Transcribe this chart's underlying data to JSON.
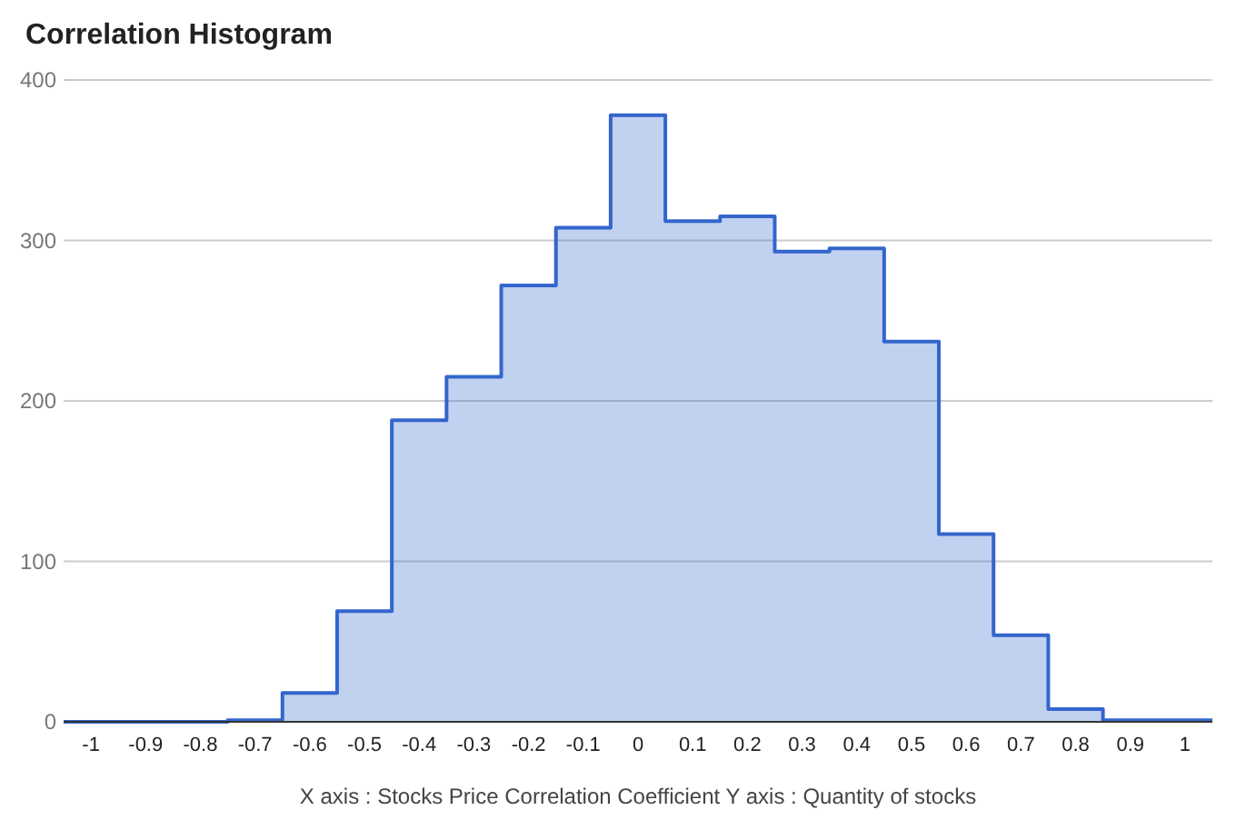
{
  "chart_data": {
    "type": "histogram",
    "title": "Correlation Histogram",
    "xlabel": "X axis : Stocks Price Correlation Coefficient  Y axis : Quantity of stocks",
    "bins": [
      -1.05,
      -0.95,
      -0.85,
      -0.75,
      -0.65,
      -0.55,
      -0.45,
      -0.35,
      -0.25,
      -0.15,
      -0.05,
      0.05,
      0.15,
      0.25,
      0.35,
      0.45,
      0.55,
      0.65,
      0.75,
      0.85,
      0.95,
      1.05
    ],
    "values": [
      0,
      0,
      0,
      1,
      18,
      69,
      188,
      215,
      272,
      308,
      378,
      312,
      315,
      293,
      295,
      237,
      117,
      54,
      8,
      1,
      1
    ],
    "color": "#3366cc",
    "xlim": [
      -1.05,
      1.05
    ],
    "xticks": [
      -1,
      -0.9,
      -0.8,
      -0.7,
      -0.6,
      -0.5,
      -0.4,
      -0.3,
      -0.2,
      -0.1,
      0,
      0.1,
      0.2,
      0.3,
      0.4,
      0.5,
      0.6,
      0.7,
      0.8,
      0.9,
      1
    ],
    "ylim": [
      0,
      400
    ],
    "yticks": [
      0,
      100,
      200,
      300,
      400
    ],
    "grid": "y"
  }
}
